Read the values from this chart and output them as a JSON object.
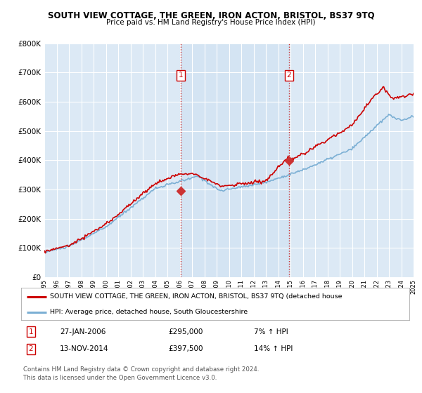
{
  "title": "SOUTH VIEW COTTAGE, THE GREEN, IRON ACTON, BRISTOL, BS37 9TQ",
  "subtitle": "Price paid vs. HM Land Registry's House Price Index (HPI)",
  "ylim": [
    0,
    800000
  ],
  "yticks": [
    0,
    100000,
    200000,
    300000,
    400000,
    500000,
    600000,
    700000,
    800000
  ],
  "xlim_start": 1995,
  "xlim_end": 2025,
  "background_color": "#dce9f5",
  "sale1_x": 2006.07,
  "sale1_y": 295000,
  "sale2_x": 2014.87,
  "sale2_y": 397500,
  "sale1_date": "27-JAN-2006",
  "sale1_price": "£295,000",
  "sale1_hpi": "7% ↑ HPI",
  "sale2_date": "13-NOV-2014",
  "sale2_price": "£397,500",
  "sale2_hpi": "14% ↑ HPI",
  "legend_line1": "SOUTH VIEW COTTAGE, THE GREEN, IRON ACTON, BRISTOL, BS37 9TQ (detached house",
  "legend_line2": "HPI: Average price, detached house, South Gloucestershire",
  "footer": "Contains HM Land Registry data © Crown copyright and database right 2024.\nThis data is licensed under the Open Government Licence v3.0.",
  "line_color_red": "#cc0000",
  "line_color_blue": "#7bafd4",
  "dot_color": "#cc3333"
}
